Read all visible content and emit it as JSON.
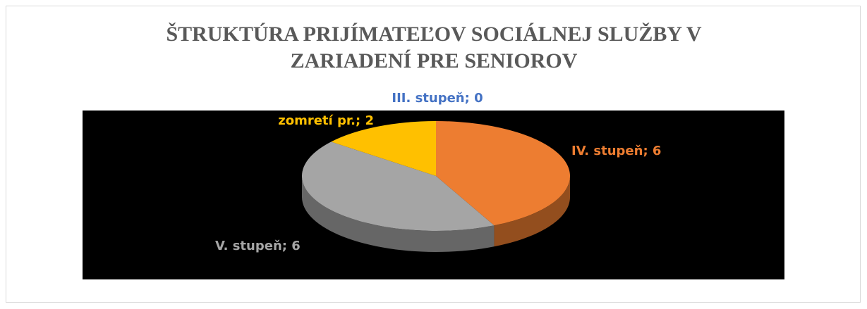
{
  "chart_data": {
    "type": "pie",
    "title": "ŠTRUKTÚRA PRIJÍMATEĽOV SOCIÁLNEJ SLUŽBY V ZARIADENÍ PRE SENIOROV",
    "values": [
      0,
      6,
      6,
      2
    ],
    "value_labels": [
      "III. stupeň; 0",
      "IV. stupeň; 6",
      "V. stupeň; 6",
      "zomretí pr.; 2"
    ],
    "colors": [
      "#4472c4",
      "#ed7d31",
      "#a5a5a5",
      "#ffc000"
    ]
  }
}
